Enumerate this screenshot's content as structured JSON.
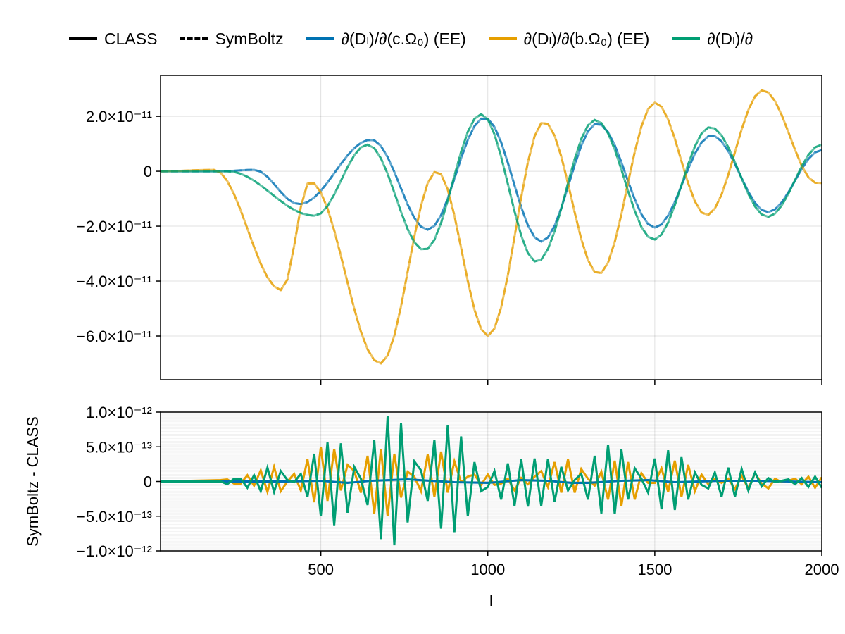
{
  "legend": [
    {
      "label": "CLASS",
      "style": "solid",
      "color": "#000000"
    },
    {
      "label": "SymBoltz",
      "style": "dashed",
      "color": "#000000"
    },
    {
      "label": "∂(Dₗ)/∂(c.Ω₀) (EE)",
      "style": "solid",
      "color": "#0072b2"
    },
    {
      "label": "∂(Dₗ)/∂(b.Ω₀) (EE)",
      "style": "solid",
      "color": "#e69f00"
    },
    {
      "label": "∂(Dₗ)/∂",
      "style": "solid",
      "color": "#009e73"
    }
  ],
  "chart_data": [
    {
      "type": "line",
      "title": "",
      "xlabel": "",
      "ylabel": "",
      "xlim": [
        20,
        2000
      ],
      "ylim": [
        -7.59e-11,
        3.49e-11
      ],
      "grid": true,
      "legend_placement": "top",
      "xticks": [
        500,
        1000,
        1500,
        2000
      ],
      "yticks": [
        2e-11,
        0,
        -2e-11,
        -4e-11,
        -6e-11
      ],
      "ytick_labels": [
        "2.0×10⁻¹¹",
        "0",
        "−2.0×10⁻¹¹",
        "−4.0×10⁻¹¹",
        "−6.0×10⁻¹¹"
      ],
      "series": [
        {
          "name": "∂(Dₗ)/∂(c.Ω₀) (EE)",
          "color": "#0072b2",
          "points": [
            [
              20,
              0
            ],
            [
              200,
              0
            ],
            [
              300,
              5e-13
            ],
            [
              435,
              -1.2e-11
            ],
            [
              651,
              1.15e-11
            ],
            [
              820,
              -2.13e-11
            ],
            [
              990,
              1.95e-11
            ],
            [
              1160,
              -2.56e-11
            ],
            [
              1328,
              1.74e-11
            ],
            [
              1500,
              -2.05e-11
            ],
            [
              1670,
              1.3e-11
            ],
            [
              1838,
              -1.49e-11
            ],
            [
              2000,
              7.7e-12
            ]
          ]
        },
        {
          "name": "∂(Dₗ)/∂(b.Ω₀) (EE)",
          "color": "#e69f00",
          "points": [
            [
              20,
              0
            ],
            [
              180,
              5e-13
            ],
            [
              383,
              -4.33e-11
            ],
            [
              467,
              -3.8e-12
            ],
            [
              678,
              -7e-11
            ],
            [
              847,
              0
            ],
            [
              1000,
              -6e-11
            ],
            [
              1168,
              1.8e-11
            ],
            [
              1332,
              -3.74e-11
            ],
            [
              1501,
              2.5e-11
            ],
            [
              1655,
              -1.6e-11
            ],
            [
              1824,
              2.95e-11
            ],
            [
              1986,
              -4.3e-12
            ],
            [
              2000,
              -4.3e-12
            ]
          ]
        },
        {
          "name": "∂(Dₗ)/∂",
          "color": "#009e73",
          "points": [
            [
              20,
              0
            ],
            [
              220,
              0
            ],
            [
              482,
              -1.62e-11
            ],
            [
              640,
              9.7e-12
            ],
            [
              810,
              -2.87e-11
            ],
            [
              980,
              2.08e-11
            ],
            [
              1146,
              -3.3e-11
            ],
            [
              1322,
              1.87e-11
            ],
            [
              1497,
              -2.49e-11
            ],
            [
              1666,
              1.61e-11
            ],
            [
              1838,
              -1.66e-11
            ],
            [
              2000,
              9.7e-12
            ]
          ]
        }
      ]
    },
    {
      "type": "line",
      "title": "",
      "xlabel": "l",
      "ylabel": "SymBoltz - CLASS",
      "xlim": [
        20,
        2000
      ],
      "ylim": [
        -1e-12,
        1e-12
      ],
      "grid": true,
      "xticks": [
        500,
        1000,
        1500,
        2000
      ],
      "xtick_labels": [
        "500",
        "1000",
        "1500",
        "2000"
      ],
      "yticks": [
        1e-12,
        5e-13,
        0,
        -5e-13,
        -1e-12
      ],
      "ytick_labels": [
        "1.0×10⁻¹²",
        "5.0×10⁻¹³",
        "0",
        "−5.0×10⁻¹³",
        "−1.0×10⁻¹²"
      ],
      "series": [
        {
          "name": "∂(Dₗ)/∂(b.Ω₀) (EE)",
          "color": "#e69f00",
          "points": [
            [
              20,
              0
            ],
            [
              200,
              2e-14
            ],
            [
              220,
              3e-14
            ],
            [
              240,
              -3e-14
            ],
            [
              260,
              -3e-14
            ],
            [
              280,
              9e-14
            ],
            [
              300,
              -6e-14
            ],
            [
              320,
              1.6e-13
            ],
            [
              340,
              -1.5e-13
            ],
            [
              360,
              2.1e-13
            ],
            [
              380,
              -1.4e-13
            ],
            [
              400,
              0
            ],
            [
              420,
              1.1e-13
            ],
            [
              440,
              -1.3e-13
            ],
            [
              460,
              3.2e-13
            ],
            [
              480,
              -3e-13
            ],
            [
              500,
              5e-13
            ],
            [
              520,
              -2.8e-13
            ],
            [
              540,
              4.7e-13
            ],
            [
              560,
              -1.3e-13
            ],
            [
              580,
              2.4e-13
            ],
            [
              600,
              1.5e-13
            ],
            [
              620,
              -1.6e-13
            ],
            [
              640,
              3.7e-13
            ],
            [
              660,
              -4.6e-13
            ],
            [
              680,
              4.7e-13
            ],
            [
              700,
              -5e-13
            ],
            [
              720,
              4e-13
            ],
            [
              740,
              -2.3e-13
            ],
            [
              760,
              1.4e-13
            ],
            [
              780,
              7e-14
            ],
            [
              800,
              -1.4e-13
            ],
            [
              820,
              3.9e-13
            ],
            [
              840,
              -2.2e-13
            ],
            [
              860,
              4.3e-13
            ],
            [
              880,
              -1.6e-13
            ],
            [
              900,
              2.9e-13
            ],
            [
              920,
              -1e-14
            ],
            [
              940,
              7e-14
            ],
            [
              960,
              1e-13
            ],
            [
              980,
              -5e-14
            ],
            [
              1000,
              1e-13
            ],
            [
              1020,
              -5e-14
            ],
            [
              1040,
              -3e-14
            ],
            [
              1060,
              4e-14
            ],
            [
              1080,
              -1.3e-13
            ],
            [
              1100,
              5e-14
            ],
            [
              1120,
              -4e-14
            ],
            [
              1140,
              7e-14
            ],
            [
              1160,
              1.5e-13
            ],
            [
              1180,
              -8e-14
            ],
            [
              1200,
              2.8e-13
            ],
            [
              1220,
              -1.6e-13
            ],
            [
              1240,
              3.2e-13
            ],
            [
              1260,
              -1.6e-13
            ],
            [
              1280,
              1.8e-13
            ],
            [
              1300,
              4e-14
            ],
            [
              1320,
              -6e-14
            ],
            [
              1340,
              1.4e-13
            ],
            [
              1360,
              -2.6e-13
            ],
            [
              1380,
              3e-13
            ],
            [
              1400,
              -3.5e-13
            ],
            [
              1420,
              2.8e-13
            ],
            [
              1440,
              -2.6e-13
            ],
            [
              1460,
              1.2e-13
            ],
            [
              1480,
              -2e-14
            ],
            [
              1500,
              -2e-14
            ],
            [
              1520,
              1.9e-13
            ],
            [
              1540,
              -1.5e-13
            ],
            [
              1560,
              3e-13
            ],
            [
              1580,
              -2.2e-13
            ],
            [
              1600,
              2.4e-13
            ],
            [
              1620,
              -1.4e-13
            ],
            [
              1640,
              1e-13
            ],
            [
              1660,
              -4e-14
            ],
            [
              1680,
              4e-14
            ],
            [
              1700,
              -2e-14
            ],
            [
              1720,
              4e-14
            ],
            [
              1740,
              -1.1e-13
            ],
            [
              1760,
              8e-14
            ],
            [
              1780,
              -1e-13
            ],
            [
              1800,
              1.2e-13
            ],
            [
              1820,
              -3e-14
            ],
            [
              1840,
              -1e-13
            ],
            [
              1860,
              4e-14
            ],
            [
              1880,
              -1e-14
            ],
            [
              1900,
              1e-14
            ],
            [
              1920,
              4e-14
            ],
            [
              1940,
              -4e-14
            ],
            [
              1960,
              7e-14
            ],
            [
              1980,
              -9e-14
            ],
            [
              2000,
              6e-14
            ]
          ]
        },
        {
          "name": "∂(Dₗ)/∂(c.Ω₀) (EE)",
          "color": "#0072b2",
          "points": [
            [
              20,
              0
            ],
            [
              400,
              0
            ],
            [
              500,
              1e-14
            ],
            [
              580,
              -2e-14
            ],
            [
              650,
              1e-14
            ],
            [
              760,
              3e-14
            ],
            [
              900,
              -1e-14
            ],
            [
              1000,
              -2e-14
            ],
            [
              1100,
              2e-14
            ],
            [
              1180,
              1e-14
            ],
            [
              1250,
              -2e-14
            ],
            [
              1300,
              -2e-14
            ],
            [
              1400,
              1e-14
            ],
            [
              1480,
              2e-14
            ],
            [
              1560,
              -1e-14
            ],
            [
              1700,
              1e-14
            ],
            [
              1800,
              1e-14
            ],
            [
              1900,
              0
            ],
            [
              2000,
              -1e-14
            ]
          ]
        },
        {
          "name": "∂(Dₗ)/∂",
          "color": "#009e73",
          "points": [
            [
              20,
              0
            ],
            [
              200,
              0
            ],
            [
              220,
              -4e-14
            ],
            [
              240,
              4e-14
            ],
            [
              260,
              4e-14
            ],
            [
              280,
              -9e-14
            ],
            [
              300,
              9e-14
            ],
            [
              320,
              -1.4e-13
            ],
            [
              340,
              2e-13
            ],
            [
              360,
              -1.5e-13
            ],
            [
              380,
              1.5e-13
            ],
            [
              400,
              2e-14
            ],
            [
              420,
              -1e-14
            ],
            [
              440,
              1.1e-13
            ],
            [
              460,
              -2.2e-13
            ],
            [
              480,
              4e-13
            ],
            [
              500,
              -5e-13
            ],
            [
              520,
              5.7e-13
            ],
            [
              540,
              -6.3e-13
            ],
            [
              560,
              5.5e-13
            ],
            [
              580,
              -4.5e-13
            ],
            [
              600,
              2.1e-13
            ],
            [
              620,
              4e-14
            ],
            [
              640,
              -3.4e-13
            ],
            [
              660,
              6e-13
            ],
            [
              680,
              -8.3e-13
            ],
            [
              700,
              9.4e-13
            ],
            [
              720,
              -9.2e-13
            ],
            [
              740,
              8.4e-13
            ],
            [
              760,
              -5.9e-13
            ],
            [
              780,
              2.9e-13
            ],
            [
              800,
              1.6e-13
            ],
            [
              820,
              -2.8e-13
            ],
            [
              840,
              6e-13
            ],
            [
              860,
              -6.8e-13
            ],
            [
              880,
              8.1e-13
            ],
            [
              900,
              -7.3e-13
            ],
            [
              920,
              6.5e-13
            ],
            [
              940,
              -5e-13
            ],
            [
              960,
              2.8e-13
            ],
            [
              980,
              -1.4e-13
            ],
            [
              1000,
              -8e-14
            ],
            [
              1020,
              1.5e-13
            ],
            [
              1040,
              -2.6e-13
            ],
            [
              1060,
              2.6e-13
            ],
            [
              1080,
              -3.5e-13
            ],
            [
              1100,
              3.2e-13
            ],
            [
              1120,
              -3.6e-13
            ],
            [
              1140,
              3.3e-13
            ],
            [
              1160,
              -3.5e-13
            ],
            [
              1180,
              3.2e-13
            ],
            [
              1200,
              -2.9e-13
            ],
            [
              1220,
              2.1e-13
            ],
            [
              1240,
              -1.3e-13
            ],
            [
              1260,
              2e-14
            ],
            [
              1280,
              1.1e-13
            ],
            [
              1300,
              -2.6e-13
            ],
            [
              1320,
              3.7e-13
            ],
            [
              1340,
              -4.6e-13
            ],
            [
              1360,
              5.3e-13
            ],
            [
              1380,
              -4.7e-13
            ],
            [
              1400,
              4.6e-13
            ],
            [
              1420,
              -2.6e-13
            ],
            [
              1440,
              1.9e-13
            ],
            [
              1460,
              4e-14
            ],
            [
              1480,
              -1.6e-13
            ],
            [
              1500,
              3.3e-13
            ],
            [
              1520,
              -4e-13
            ],
            [
              1540,
              4.5e-13
            ],
            [
              1560,
              -4.1e-13
            ],
            [
              1580,
              3.5e-13
            ],
            [
              1600,
              -2.6e-13
            ],
            [
              1620,
              1.3e-13
            ],
            [
              1640,
              -5e-14
            ],
            [
              1660,
              -1e-13
            ],
            [
              1680,
              1.3e-13
            ],
            [
              1700,
              -2.2e-13
            ],
            [
              1720,
              2e-13
            ],
            [
              1740,
              -2.2e-13
            ],
            [
              1760,
              1.8e-13
            ],
            [
              1780,
              -1.3e-13
            ],
            [
              1800,
              1.3e-13
            ],
            [
              1820,
              -7e-14
            ],
            [
              1840,
              5e-14
            ],
            [
              1860,
              -1e-14
            ],
            [
              1880,
              1e-14
            ],
            [
              1900,
              3e-14
            ],
            [
              1920,
              -4e-14
            ],
            [
              1940,
              5e-14
            ],
            [
              1960,
              -8e-14
            ],
            [
              1980,
              7e-14
            ],
            [
              2000,
              -9e-14
            ]
          ]
        }
      ]
    }
  ]
}
